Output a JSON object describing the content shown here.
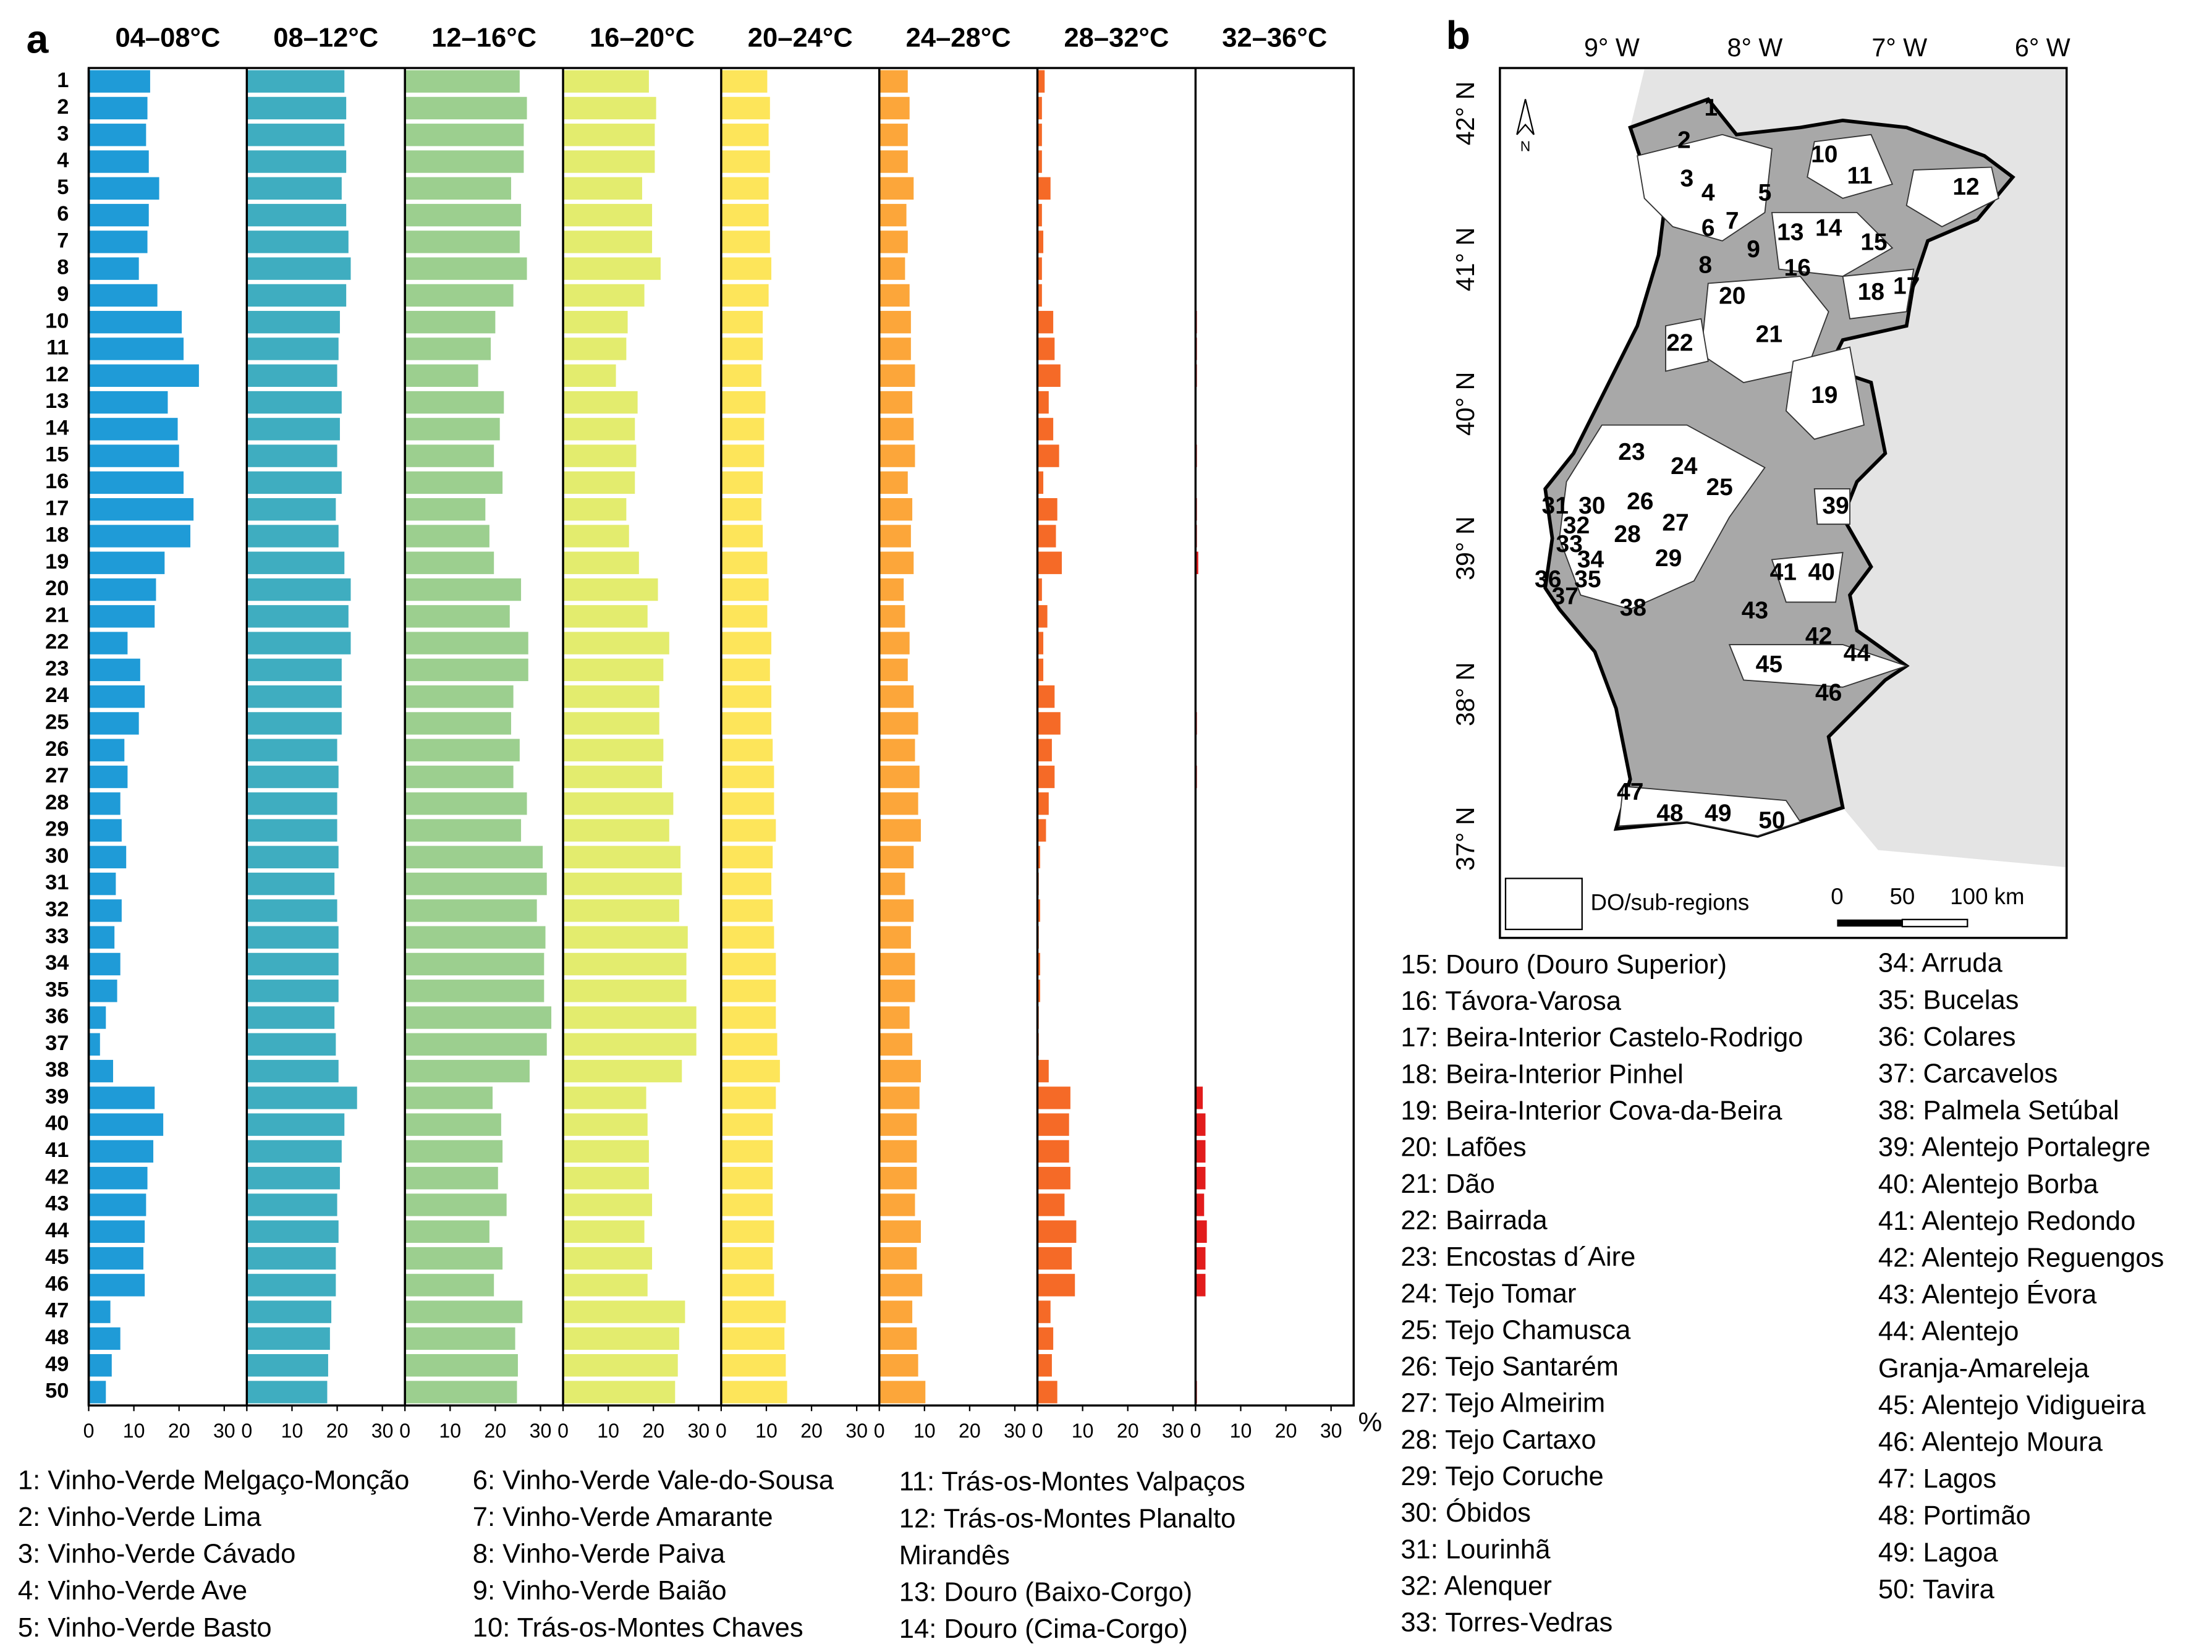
{
  "chart_data": {
    "type": "bar",
    "orientation": "horizontal",
    "panel_label": "a",
    "x_unit": "%",
    "categories": [
      "1",
      "2",
      "3",
      "4",
      "5",
      "6",
      "7",
      "8",
      "9",
      "10",
      "11",
      "12",
      "13",
      "14",
      "15",
      "16",
      "17",
      "18",
      "19",
      "20",
      "21",
      "22",
      "23",
      "24",
      "25",
      "26",
      "27",
      "28",
      "29",
      "30",
      "31",
      "32",
      "33",
      "34",
      "35",
      "36",
      "37",
      "38",
      "39",
      "40",
      "41",
      "42",
      "43",
      "44",
      "45",
      "46",
      "47",
      "48",
      "49",
      "50"
    ],
    "xlim": [
      0,
      35
    ],
    "xticks": [
      0,
      10,
      20,
      30
    ],
    "series": [
      {
        "name": "04–08°C",
        "color": "#1f9bd7",
        "values": [
          13.6,
          13,
          12.7,
          13.3,
          15.6,
          13.3,
          13,
          11.1,
          15.2,
          20.6,
          21,
          24.4,
          17.5,
          19.7,
          20,
          21,
          23.2,
          22.5,
          16.8,
          14.9,
          14.6,
          8.6,
          11.4,
          12.4,
          11.1,
          7.9,
          8.6,
          7,
          7.3,
          8.3,
          6,
          7.3,
          5.7,
          7,
          6.3,
          3.8,
          2.5,
          5.4,
          14.6,
          16.5,
          14.3,
          13,
          12.7,
          12.4,
          12.1,
          12.4,
          4.8,
          7,
          5.1,
          3.8
        ]
      },
      {
        "name": "08–12°C",
        "color": "#3fadc0",
        "values": [
          21.6,
          22,
          21.6,
          22,
          21,
          22,
          22.5,
          23,
          22,
          20.6,
          20.3,
          20,
          21,
          20.6,
          20,
          21,
          19.7,
          20.3,
          21.6,
          23,
          22.5,
          23,
          21,
          21,
          21,
          20,
          20.3,
          20,
          20,
          20.3,
          19.4,
          20,
          20.3,
          20.3,
          20.3,
          19.4,
          19.7,
          20.3,
          24.4,
          21.6,
          21,
          20.6,
          20,
          20.3,
          19.7,
          19.7,
          18.7,
          18.4,
          18,
          17.8
        ]
      },
      {
        "name": "12–16°C",
        "color": "#9ccf8f",
        "values": [
          25.4,
          27,
          26.3,
          26.3,
          23.5,
          25.7,
          25.4,
          27,
          24,
          20,
          19,
          16.2,
          21.9,
          21,
          19.7,
          21.6,
          17.8,
          18.7,
          19.7,
          25.7,
          23.2,
          27.3,
          27.3,
          24,
          23.5,
          25.4,
          24,
          27,
          25.7,
          30.5,
          31.4,
          29.2,
          31.1,
          30.8,
          30.8,
          32.4,
          31.4,
          27.6,
          19.4,
          21.3,
          21.6,
          20.6,
          22.5,
          18.7,
          21.6,
          19.7,
          26,
          24.4,
          25,
          24.8
        ]
      },
      {
        "name": "16–20°C",
        "color": "#e3ec6e",
        "values": [
          19,
          20.6,
          20.3,
          20.3,
          17.5,
          19.7,
          19.7,
          21.6,
          18,
          14.3,
          14,
          11.7,
          16.5,
          15.9,
          16.2,
          15.9,
          14,
          14.6,
          16.8,
          21,
          18.7,
          23.5,
          22.2,
          21.3,
          21.3,
          22.2,
          21.9,
          24.4,
          23.5,
          26,
          26.3,
          25.7,
          27.6,
          27.3,
          27.3,
          29.5,
          29.5,
          26.3,
          18.4,
          18.7,
          19,
          19,
          19.7,
          18,
          19.7,
          18.7,
          27,
          25.7,
          25.4,
          24.8
        ]
      },
      {
        "name": "20–24°C",
        "color": "#fde55a",
        "values": [
          10.2,
          10.8,
          10.5,
          10.8,
          10.5,
          10.5,
          10.8,
          11.1,
          10.5,
          9.2,
          9.2,
          8.9,
          9.8,
          9.5,
          9.5,
          9.2,
          8.9,
          9.2,
          10.2,
          10.5,
          10.2,
          11.1,
          10.8,
          11.1,
          11.1,
          11.4,
          11.7,
          11.7,
          12.1,
          11.4,
          11.1,
          11.4,
          11.7,
          12.1,
          12.1,
          12.1,
          12.4,
          13,
          12.1,
          11.4,
          11.4,
          11.4,
          11.4,
          11.7,
          11.4,
          11.7,
          14.3,
          14,
          14.3,
          14.6
        ]
      },
      {
        "name": "24–28°C",
        "color": "#fca63a",
        "values": [
          6.3,
          6.7,
          6.3,
          6.3,
          7.6,
          6,
          6.3,
          5.7,
          6.7,
          7,
          7,
          7.9,
          7.3,
          7.6,
          7.9,
          6.3,
          7.3,
          7,
          7.6,
          5.4,
          5.7,
          6.7,
          6.3,
          7.6,
          8.6,
          7.9,
          8.9,
          8.6,
          9.2,
          7.6,
          5.7,
          7.6,
          7,
          7.9,
          7.9,
          6.7,
          7.3,
          9.2,
          8.9,
          8.3,
          8.3,
          8.3,
          7.9,
          9.2,
          8.3,
          9.5,
          7.3,
          8.3,
          8.6,
          10.2
        ]
      },
      {
        "name": "28–32°C",
        "color": "#f56a27",
        "values": [
          1.6,
          1,
          1,
          1,
          2.9,
          1,
          1.3,
          1,
          1,
          3.5,
          3.8,
          5.1,
          2.5,
          3.5,
          4.8,
          1.3,
          4.4,
          4.1,
          5.4,
          1,
          2.2,
          1.3,
          1.3,
          3.8,
          5.1,
          3.2,
          3.8,
          2.5,
          1.9,
          0.6,
          0.3,
          0.6,
          0.3,
          0.6,
          0.6,
          0.3,
          0.3,
          2.5,
          7.3,
          7,
          7,
          7.3,
          6,
          8.6,
          7.6,
          8.3,
          2.9,
          3.5,
          3.2,
          4.4
        ]
      },
      {
        "name": "32–36°C",
        "color": "#e21c1c",
        "values": [
          0,
          0,
          0,
          0,
          0,
          0,
          0,
          0,
          0,
          0.3,
          0.3,
          0.3,
          0,
          0,
          0.3,
          0,
          0.3,
          0.3,
          0.6,
          0,
          0,
          0,
          0,
          0,
          0.3,
          0,
          0.3,
          0,
          0,
          0,
          0,
          0,
          0,
          0,
          0,
          0,
          0,
          0,
          1.6,
          2.2,
          2.2,
          2.2,
          1.9,
          2.5,
          2.2,
          2.2,
          0,
          0,
          0,
          0.3
        ]
      }
    ],
    "legend_entries": [
      [
        "1: Vinho-Verde Melgaço-Monção"
      ],
      [
        "2: Vinho-Verde Lima"
      ],
      [
        "3: Vinho-Verde Cávado"
      ],
      [
        "4: Vinho-Verde Ave"
      ],
      [
        "5: Vinho-Verde Basto"
      ],
      [
        "6: Vinho-Verde Vale-do-Sousa"
      ],
      [
        "7: Vinho-Verde Amarante"
      ],
      [
        "8: Vinho-Verde Paiva"
      ],
      [
        "9: Vinho-Verde Baião"
      ],
      [
        "10: Trás-os-Montes Chaves"
      ],
      [
        "11: Trás-os-Montes Valpaços"
      ],
      [
        "12: Trás-os-Montes Planalto",
        "Mirandês"
      ],
      [
        "13: Douro (Baixo-Corgo)"
      ],
      [
        "14: Douro (Cima-Corgo)"
      ],
      [
        "15: Douro (Douro Superior)"
      ],
      [
        "16: Távora-Varosa"
      ],
      [
        "17: Beira-Interior Castelo-Rodrigo"
      ],
      [
        "18: Beira-Interior Pinhel"
      ],
      [
        "19: Beira-Interior Cova-da-Beira"
      ],
      [
        "20: Lafões"
      ],
      [
        "21: Dão"
      ],
      [
        "22: Bairrada"
      ],
      [
        "23: Encostas d´Aire"
      ],
      [
        "24: Tejo Tomar"
      ],
      [
        "25: Tejo Chamusca"
      ],
      [
        "26: Tejo Santarém"
      ],
      [
        "27: Tejo Almeirim"
      ],
      [
        "28: Tejo Cartaxo"
      ],
      [
        "29: Tejo Coruche"
      ],
      [
        "30: Óbidos"
      ],
      [
        "31: Lourinhã"
      ],
      [
        "32: Alenquer"
      ],
      [
        "33: Torres-Vedras"
      ],
      [
        "34: Arruda"
      ],
      [
        "35: Bucelas"
      ],
      [
        "36: Colares"
      ],
      [
        "37: Carcavelos"
      ],
      [
        "38: Palmela Setúbal"
      ],
      [
        "39: Alentejo Portalegre"
      ],
      [
        "40: Alentejo Borba"
      ],
      [
        "41: Alentejo Redondo"
      ],
      [
        "42: Alentejo Reguengos"
      ],
      [
        "43: Alentejo Évora"
      ],
      [
        "44: Alentejo",
        "Granja-Amareleja"
      ],
      [
        "45: Alentejo Vidigueira"
      ],
      [
        "46: Alentejo Moura"
      ],
      [
        "47: Lagos"
      ],
      [
        "48: Portimão"
      ],
      [
        "49: Lagoa"
      ],
      [
        "50: Tavira"
      ]
    ]
  },
  "map": {
    "panel_label": "b",
    "lon_labels": [
      "9° W",
      "8° W",
      "7° W",
      "6° W"
    ],
    "lat_labels": [
      "42° N",
      "41° N",
      "40° N",
      "39° N",
      "38° N",
      "37° N"
    ],
    "north": "N",
    "legend_label": "DO/sub-regions",
    "scale_labels": [
      "0",
      "50",
      "100 km"
    ],
    "region_labels": [
      "1",
      "2",
      "3",
      "4",
      "5",
      "6",
      "7",
      "8",
      "9",
      "10",
      "11",
      "12",
      "13",
      "14",
      "15",
      "16",
      "17",
      "18",
      "19",
      "20",
      "21",
      "22",
      "23",
      "24",
      "25",
      "26",
      "27",
      "28",
      "29",
      "30",
      "31",
      "32",
      "33",
      "34",
      "35",
      "36",
      "37",
      "38",
      "39",
      "40",
      "41",
      "42",
      "43",
      "44",
      "45",
      "46",
      "47",
      "48",
      "49",
      "50"
    ]
  }
}
